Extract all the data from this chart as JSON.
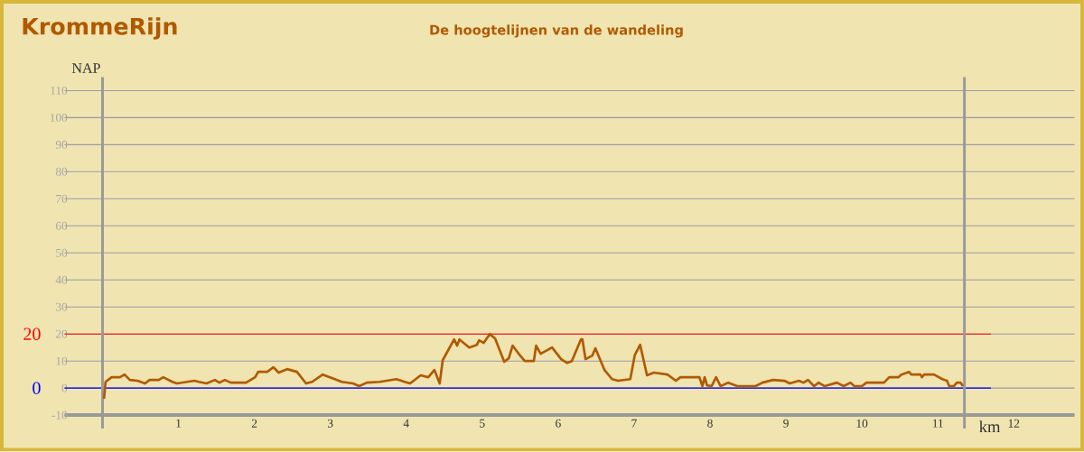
{
  "chart_data": {
    "type": "line",
    "title": "KrommeRijn",
    "subtitle": "De hoogtelijnen van de wandeling",
    "xlabel": "km",
    "ylabel": "NAP",
    "color": "#b05a00",
    "x": [
      0.02,
      0.04,
      0.12,
      0.23,
      0.29,
      0.36,
      0.46,
      0.56,
      0.62,
      0.74,
      0.8,
      0.92,
      0.98,
      1.21,
      1.27,
      1.37,
      1.48,
      1.54,
      1.61,
      1.69,
      1.89,
      2.01,
      2.05,
      2.17,
      2.25,
      2.32,
      2.43,
      2.56,
      2.68,
      2.76,
      2.9,
      3.02,
      3.15,
      3.3,
      3.38,
      3.48,
      3.65,
      3.87,
      3.98,
      4.05,
      4.19,
      4.29,
      4.37,
      4.44,
      4.48,
      4.63,
      4.67,
      4.7,
      4.83,
      4.93,
      4.96,
      5.02,
      5.1,
      5.17,
      5.29,
      5.35,
      5.4,
      5.48,
      5.56,
      5.68,
      5.71,
      5.77,
      5.92,
      6.04,
      6.12,
      6.18,
      6.3,
      6.32,
      6.36,
      6.45,
      6.49,
      6.61,
      6.71,
      6.79,
      6.95,
      7.01,
      7.08,
      7.17,
      7.26,
      7.44,
      7.55,
      7.61,
      7.68,
      7.86,
      7.9,
      7.93,
      7.96,
      8.02,
      8.08,
      8.14,
      8.24,
      8.36,
      8.6,
      8.69,
      8.83,
      8.98,
      9.05,
      9.17,
      9.23,
      9.29,
      9.37,
      9.43,
      9.51,
      9.67,
      9.76,
      9.85,
      9.9,
      10.0,
      10.06,
      10.29,
      10.36,
      10.48,
      10.52,
      10.62,
      10.65,
      10.77,
      10.79,
      10.82,
      10.95,
      11.06,
      11.12,
      11.15,
      11.21,
      11.25,
      11.3,
      11.33
    ],
    "values": [
      -4,
      2.3,
      4,
      4,
      5,
      3,
      2.7,
      1.7,
      3,
      3,
      4,
      2.3,
      1.7,
      2.7,
      2.3,
      1.7,
      3,
      2,
      3,
      2,
      2,
      4,
      6,
      6,
      7.7,
      5.7,
      7,
      6,
      1.7,
      2.3,
      5,
      3.7,
      2.3,
      1.7,
      0.7,
      2,
      2.3,
      3.3,
      2.3,
      1.7,
      4.7,
      4,
      6.7,
      1.7,
      10.3,
      18,
      15.7,
      18,
      15,
      16,
      17.7,
      16.7,
      20,
      18.3,
      9.7,
      11,
      15.7,
      12.7,
      10,
      10,
      15.7,
      12.7,
      15,
      10.7,
      9.3,
      10,
      18,
      18,
      10.7,
      12,
      14.7,
      6.7,
      3.3,
      2.7,
      3.3,
      12.3,
      16,
      4.7,
      5.7,
      5,
      2.7,
      4,
      4,
      4,
      0.7,
      4,
      1,
      0.7,
      4,
      0.7,
      2,
      0.7,
      0.7,
      2,
      3,
      2.7,
      1.7,
      2.7,
      2,
      3,
      0.7,
      2,
      0.7,
      2,
      0.7,
      2,
      0.7,
      0.7,
      2,
      2,
      4,
      4,
      5,
      6,
      5,
      5,
      4,
      5,
      5,
      3.3,
      2.7,
      0.7,
      0.7,
      2,
      2,
      0.7
    ],
    "xlim": [
      -0.5,
      12.8
    ],
    "ylim": [
      -10,
      115
    ],
    "xticks": [
      1,
      2,
      3,
      4,
      5,
      6,
      7,
      8,
      9,
      10,
      11,
      12
    ],
    "yticks": [
      -10,
      0,
      10,
      20,
      30,
      40,
      50,
      60,
      70,
      80,
      90,
      100,
      110
    ],
    "grid": "y",
    "ref_lines": [
      {
        "axis": "y",
        "value": 0,
        "label": "0",
        "color": "#0000ff"
      },
      {
        "axis": "y",
        "value": 20,
        "label": "20",
        "color": "#ff0000"
      },
      {
        "axis": "x",
        "value": 0,
        "color": "#999999"
      },
      {
        "axis": "x",
        "value": 11.35,
        "color": "#999999"
      }
    ]
  }
}
